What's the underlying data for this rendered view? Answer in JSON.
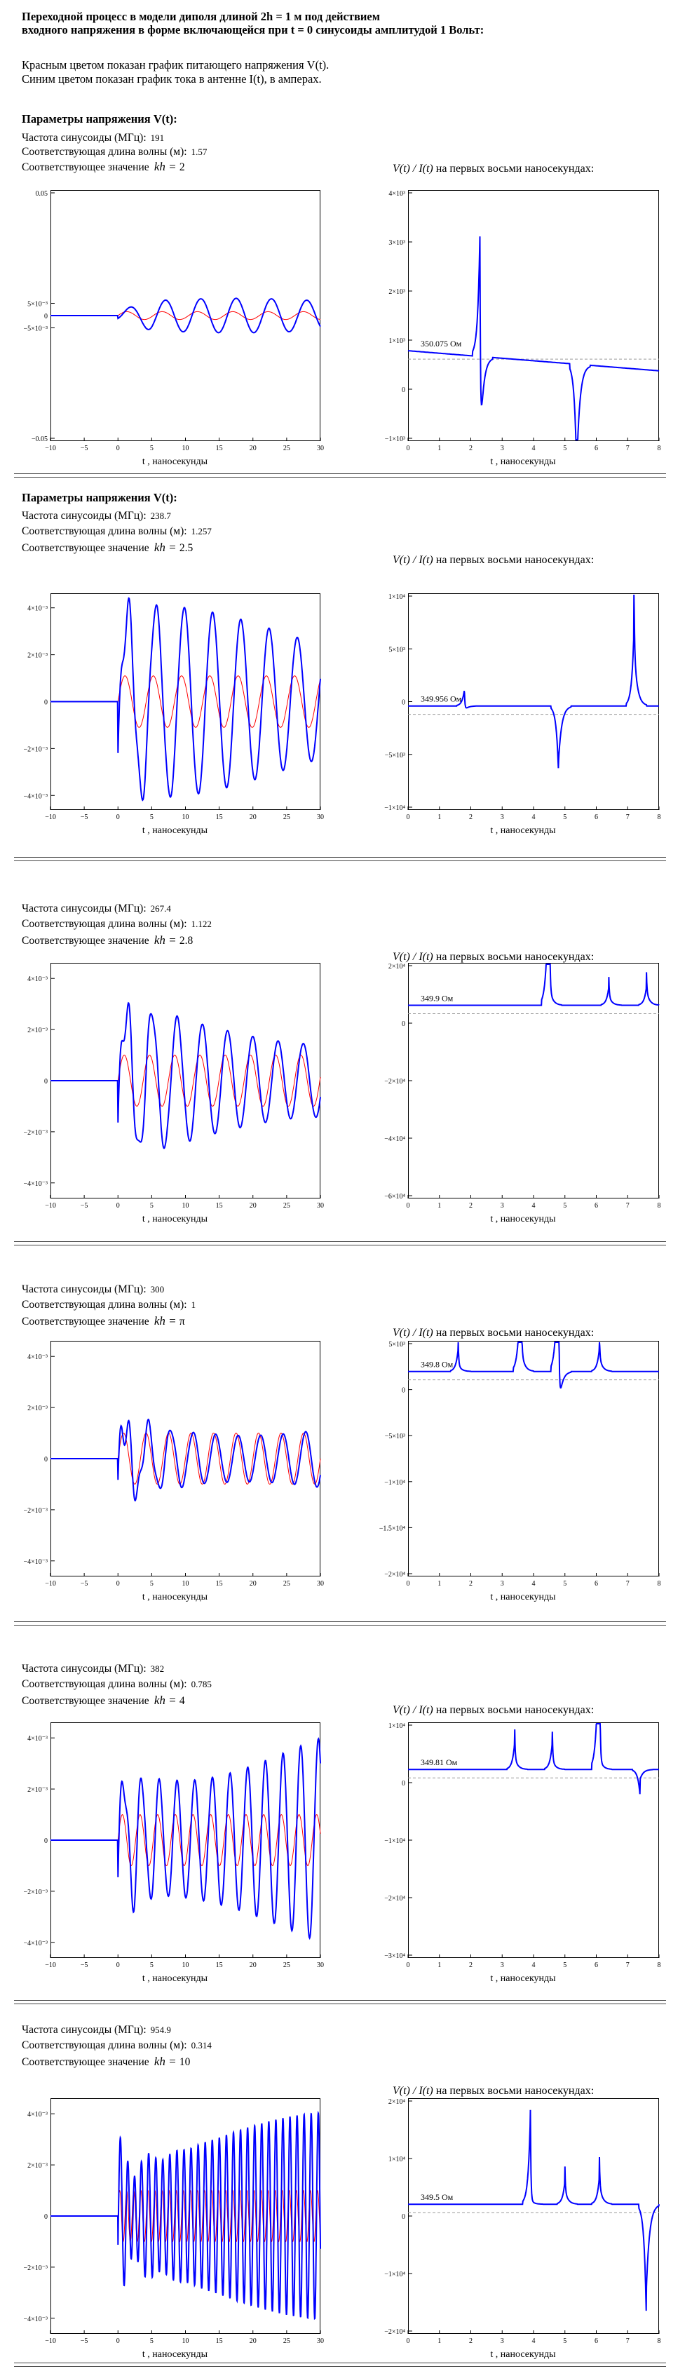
{
  "header": {
    "line1": "Переходной процесс в модели диполя длиной 2h = 1 м под действием",
    "line2": "входного напряжения в форме включающейся при t = 0 синусоиды амплитудой 1 Вольт:"
  },
  "intro": {
    "red_note": "Красным цветом показан график питающего напряжения V(t).",
    "blue_note": "Синим цветом показан график тока в антенне I(t), в амперах."
  },
  "labels": {
    "params_title": "Параметры напряжения V(t):",
    "freq_label": "Частота синусоиды (МГц):",
    "wavelength_label": "Соответствующая длина волны (м):",
    "kh_label": "Соответствующее значение",
    "kh_symbol": "kh =",
    "z_title_expr": "V(t) / I(t)",
    "z_title_rest": "на первых восьми наносекундах:",
    "x_axis_label": "t , наносекунды",
    "ohm": "Ом"
  },
  "colors": {
    "current": "#0000ff",
    "voltage": "#ff0000",
    "axis": "#000000",
    "dashed": "#9a9a9a"
  },
  "cases": [
    {
      "freq": "191",
      "wavelength": "1.57",
      "kh": "2",
      "show_title": true,
      "impedance": "350.075",
      "left_ticks": [
        "0.05",
        "5×10⁻³",
        "0",
        "−5×10⁻³",
        "−0.05"
      ],
      "right_ticks": [
        "4×10³",
        "3×10³",
        "2×10³",
        "1×10³",
        "0",
        "−1×10³"
      ]
    },
    {
      "freq": "238.7",
      "wavelength": "1.257",
      "kh": "2.5",
      "show_title": true,
      "impedance": "349.956",
      "left_ticks": [
        "4×10⁻³",
        "2×10⁻³",
        "0",
        "−2×10⁻³",
        "−4×10⁻³"
      ],
      "right_ticks": [
        "1×10⁴",
        "5×10³",
        "0",
        "−5×10³",
        "−1×10⁴"
      ]
    },
    {
      "freq": "267.4",
      "wavelength": "1.122",
      "kh": "2.8",
      "show_title": false,
      "impedance": "349.9",
      "left_ticks": [
        "4×10⁻³",
        "2×10⁻³",
        "0",
        "−2×10⁻³",
        "−4×10⁻³"
      ],
      "right_ticks": [
        "2×10⁴",
        "0",
        "−2×10⁴",
        "−4×10⁴",
        "−6×10⁴"
      ]
    },
    {
      "freq": "300",
      "wavelength": "1",
      "kh": "π",
      "show_title": false,
      "impedance": "349.8",
      "left_ticks": [
        "4×10⁻³",
        "2×10⁻³",
        "0",
        "−2×10⁻³",
        "−4×10⁻³"
      ],
      "right_ticks": [
        "5×10³",
        "0",
        "−5×10³",
        "−1×10⁴",
        "−1.5×10⁴",
        "−2×10⁴"
      ]
    },
    {
      "freq": "382",
      "wavelength": "0.785",
      "kh": "4",
      "show_title": false,
      "impedance": "349.81",
      "left_ticks": [
        "4×10⁻³",
        "2×10⁻³",
        "0",
        "−2×10⁻³",
        "−4×10⁻³"
      ],
      "right_ticks": [
        "1×10⁴",
        "0",
        "−1×10⁴",
        "−2×10⁴",
        "−3×10⁴"
      ]
    },
    {
      "freq": "954.9",
      "wavelength": "0.314",
      "kh": "10",
      "show_title": false,
      "impedance": "349.5",
      "left_ticks": [
        "4×10⁻³",
        "2×10⁻³",
        "0",
        "−2×10⁻³",
        "−4×10⁻³"
      ],
      "right_ticks": [
        "2×10⁴",
        "1×10⁴",
        "0",
        "−1×10⁴",
        "−2×10⁴"
      ]
    }
  ],
  "chart_data": [
    {
      "type": "line",
      "title": "",
      "x_ticks": [
        -10,
        -5,
        0,
        5,
        10,
        15,
        20,
        25,
        30
      ],
      "xlim": [
        -10,
        30
      ],
      "series": [
        {
          "color": "#0000ff",
          "role": "I(t)"
        },
        {
          "color": "#ff0000",
          "role": "V(t)"
        }
      ]
    },
    {
      "type": "line",
      "title": "V(t) / I(t)",
      "x_ticks": [
        0,
        1,
        2,
        3,
        4,
        5,
        6,
        7,
        8
      ],
      "xlim": [
        0,
        8
      ],
      "series": [
        {
          "color": "#0000ff",
          "role": "V(t)/I(t)"
        }
      ]
    }
  ]
}
